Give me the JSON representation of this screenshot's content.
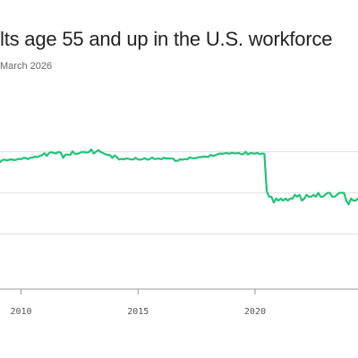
{
  "header": {
    "title": "lts age 55 and up in the U.S. workforce",
    "subtitle": "March 2026"
  },
  "chart_data": {
    "type": "line",
    "x_tick_labels": [
      "2010",
      "2015",
      "2020"
    ],
    "x_ticks": [
      2010,
      2015,
      2020
    ],
    "xlim": [
      2009.1,
      2024.4
    ],
    "ylim": [
      0,
      1
    ],
    "y_grid": [
      0.286,
      0.5,
      0.714
    ],
    "grid": true,
    "line_color": "#22c378",
    "series": [
      {
        "x": [
          2009.1,
          2009.2,
          2009.3,
          2009.4,
          2009.5,
          2009.6,
          2009.7,
          2009.8,
          2009.9,
          2010.0,
          2010.1,
          2010.2,
          2010.3,
          2010.4,
          2010.5,
          2010.6,
          2010.7,
          2010.8,
          2010.9,
          2011.0,
          2011.1,
          2011.2,
          2011.3,
          2011.4,
          2011.5,
          2011.6,
          2011.7,
          2011.8,
          2011.9,
          2012.0,
          2012.1,
          2012.2,
          2012.3,
          2012.4,
          2012.5,
          2012.6,
          2012.7,
          2012.8,
          2012.9,
          2013.0,
          2013.1,
          2013.2,
          2013.3,
          2013.4,
          2013.5,
          2013.6,
          2013.7,
          2013.8,
          2013.9,
          2014.0,
          2014.1,
          2014.2,
          2014.3,
          2014.4,
          2014.5,
          2014.6,
          2014.7,
          2014.8,
          2014.9,
          2015.0,
          2015.1,
          2015.2,
          2015.3,
          2015.4,
          2015.5,
          2015.6,
          2015.7,
          2015.8,
          2015.9,
          2016.0,
          2016.1,
          2016.2,
          2016.3,
          2016.4,
          2016.5,
          2016.6,
          2016.7,
          2016.8,
          2016.9,
          2017.0,
          2017.1,
          2017.2,
          2017.3,
          2017.4,
          2017.5,
          2017.6,
          2017.7,
          2017.8,
          2017.9,
          2018.0,
          2018.1,
          2018.2,
          2018.3,
          2018.4,
          2018.5,
          2018.6,
          2018.7,
          2018.8,
          2018.9,
          2019.0,
          2019.1,
          2019.2,
          2019.3,
          2019.4,
          2019.5,
          2019.6,
          2019.7,
          2019.8,
          2019.9,
          2020.0,
          2020.1,
          2020.2,
          2020.3,
          2020.4,
          2020.5,
          2020.6,
          2020.7,
          2020.8,
          2020.9,
          2021.0,
          2021.1,
          2021.2,
          2021.3,
          2021.4,
          2021.5,
          2021.6,
          2021.7,
          2021.8,
          2021.9,
          2022.0,
          2022.1,
          2022.2,
          2022.3,
          2022.4,
          2022.5,
          2022.6,
          2022.7,
          2022.8,
          2022.9,
          2023.0,
          2023.1,
          2023.2,
          2023.3,
          2023.4,
          2023.5,
          2023.6,
          2023.7,
          2023.8,
          2023.9,
          2024.0,
          2024.1,
          2024.2,
          2024.3,
          2024.4
        ],
        "y": [
          0.66,
          0.67,
          0.673,
          0.668,
          0.673,
          0.674,
          0.67,
          0.672,
          0.677,
          0.675,
          0.682,
          0.681,
          0.676,
          0.683,
          0.683,
          0.689,
          0.685,
          0.692,
          0.696,
          0.706,
          0.692,
          0.708,
          0.711,
          0.707,
          0.705,
          0.713,
          0.708,
          0.682,
          0.699,
          0.699,
          0.697,
          0.716,
          0.703,
          0.703,
          0.707,
          0.712,
          0.713,
          0.709,
          0.712,
          0.726,
          0.704,
          0.714,
          0.722,
          0.713,
          0.707,
          0.701,
          0.697,
          0.696,
          0.682,
          0.695,
          0.685,
          0.673,
          0.677,
          0.674,
          0.679,
          0.677,
          0.674,
          0.674,
          0.683,
          0.673,
          0.673,
          0.676,
          0.68,
          0.672,
          0.676,
          0.684,
          0.676,
          0.677,
          0.678,
          0.675,
          0.683,
          0.678,
          0.679,
          0.678,
          0.678,
          0.665,
          0.667,
          0.675,
          0.672,
          0.676,
          0.674,
          0.684,
          0.681,
          0.68,
          0.682,
          0.685,
          0.686,
          0.689,
          0.688,
          0.686,
          0.697,
          0.692,
          0.695,
          0.701,
          0.704,
          0.703,
          0.706,
          0.707,
          0.703,
          0.709,
          0.706,
          0.705,
          0.708,
          0.701,
          0.702,
          0.713,
          0.699,
          0.707,
          0.705,
          0.704,
          0.708,
          0.701,
          0.705,
          0.703,
          0.51,
          0.48,
          0.48,
          0.45,
          0.47,
          0.46,
          0.47,
          0.46,
          0.47,
          0.46,
          0.47,
          0.47,
          0.49,
          0.48,
          0.49,
          0.46,
          0.47,
          0.49,
          0.48,
          0.48,
          0.49,
          0.48,
          0.5,
          0.48,
          0.48,
          0.49,
          0.5,
          0.5,
          0.48,
          0.48,
          0.49,
          0.5,
          0.5,
          0.5,
          0.46,
          0.44,
          0.47,
          0.46,
          0.46,
          0.47
        ]
      }
    ]
  }
}
